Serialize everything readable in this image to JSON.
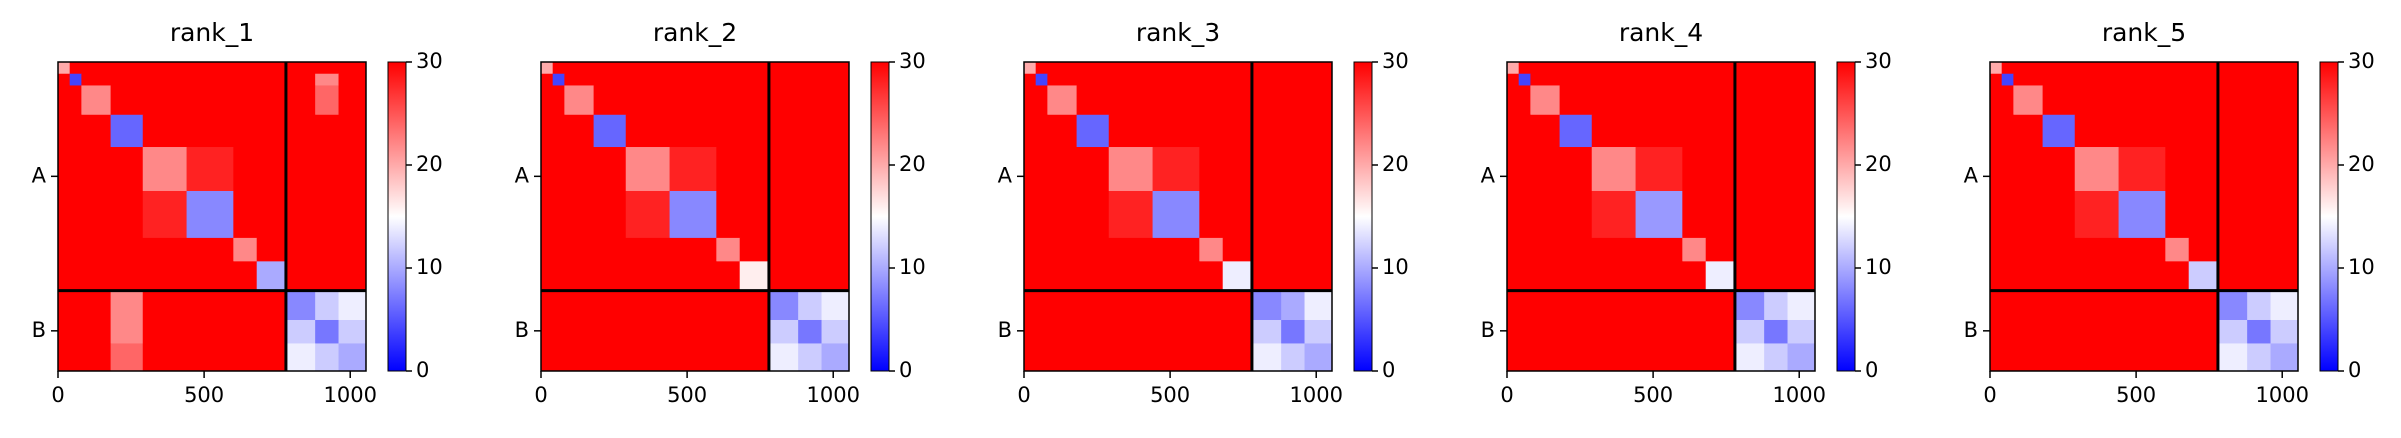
{
  "chart_data": [
    {
      "type": "heatmap",
      "title": "rank_1",
      "bins": [
        0,
        40,
        80,
        180,
        290,
        440,
        600,
        680,
        780,
        880,
        960,
        1054
      ],
      "matrix": [
        [
          20,
          30,
          30,
          30,
          30,
          30,
          30,
          30,
          30,
          30,
          30
        ],
        [
          30,
          4,
          30,
          30,
          30,
          30,
          30,
          30,
          30,
          22,
          30
        ],
        [
          30,
          30,
          22,
          30,
          30,
          30,
          30,
          30,
          30,
          24,
          30
        ],
        [
          30,
          30,
          30,
          6,
          30,
          30,
          30,
          30,
          30,
          30,
          30
        ],
        [
          30,
          30,
          30,
          30,
          22,
          28,
          30,
          30,
          30,
          30,
          30
        ],
        [
          30,
          30,
          30,
          30,
          28,
          8,
          30,
          30,
          30,
          30,
          30
        ],
        [
          30,
          30,
          30,
          30,
          30,
          30,
          22,
          30,
          30,
          30,
          30
        ],
        [
          30,
          30,
          30,
          30,
          30,
          30,
          30,
          10,
          30,
          30,
          30
        ],
        [
          30,
          30,
          30,
          22,
          30,
          30,
          30,
          30,
          8,
          12,
          14
        ],
        [
          30,
          30,
          30,
          22,
          30,
          30,
          30,
          30,
          12,
          7,
          12
        ],
        [
          30,
          30,
          30,
          24,
          30,
          30,
          30,
          30,
          14,
          12,
          10
        ]
      ],
      "xlim": [
        0,
        1054
      ],
      "xticks": [
        0,
        500,
        1000
      ],
      "ylim": [
        1054,
        0
      ],
      "yticks": [
        {
          "value": 390,
          "label": "A"
        },
        {
          "value": 917,
          "label": "B"
        }
      ],
      "chain_boundaries": [
        780
      ],
      "clim": [
        0,
        30
      ],
      "cticks": [
        0,
        10,
        20,
        30
      ],
      "colormap": [
        "#0000ff",
        "#ffffff",
        "#ff0000"
      ]
    },
    {
      "type": "heatmap",
      "title": "rank_2",
      "bins": [
        0,
        40,
        80,
        180,
        290,
        440,
        600,
        680,
        780,
        880,
        960,
        1054
      ],
      "matrix": [
        [
          20,
          30,
          30,
          30,
          30,
          30,
          30,
          30,
          30,
          30,
          30
        ],
        [
          30,
          4,
          30,
          30,
          30,
          30,
          30,
          30,
          30,
          30,
          30
        ],
        [
          30,
          30,
          22,
          30,
          30,
          30,
          30,
          30,
          30,
          30,
          30
        ],
        [
          30,
          30,
          30,
          6,
          30,
          30,
          30,
          30,
          30,
          30,
          30
        ],
        [
          30,
          30,
          30,
          30,
          22,
          28,
          30,
          30,
          30,
          30,
          30
        ],
        [
          30,
          30,
          30,
          30,
          28,
          8,
          30,
          30,
          30,
          30,
          30
        ],
        [
          30,
          30,
          30,
          30,
          30,
          30,
          22,
          30,
          30,
          30,
          30
        ],
        [
          30,
          30,
          30,
          30,
          30,
          30,
          30,
          16,
          30,
          30,
          30
        ],
        [
          30,
          30,
          30,
          30,
          30,
          30,
          30,
          30,
          8,
          12,
          14
        ],
        [
          30,
          30,
          30,
          30,
          30,
          30,
          30,
          30,
          12,
          7,
          12
        ],
        [
          30,
          30,
          30,
          30,
          30,
          30,
          30,
          30,
          14,
          12,
          10
        ]
      ],
      "xlim": [
        0,
        1054
      ],
      "xticks": [
        0,
        500,
        1000
      ],
      "ylim": [
        1054,
        0
      ],
      "yticks": [
        {
          "value": 390,
          "label": "A"
        },
        {
          "value": 917,
          "label": "B"
        }
      ],
      "chain_boundaries": [
        780
      ],
      "clim": [
        0,
        30
      ],
      "cticks": [
        0,
        10,
        20,
        30
      ],
      "colormap": [
        "#0000ff",
        "#ffffff",
        "#ff0000"
      ]
    },
    {
      "type": "heatmap",
      "title": "rank_3",
      "bins": [
        0,
        40,
        80,
        180,
        290,
        440,
        600,
        680,
        780,
        880,
        960,
        1054
      ],
      "matrix": [
        [
          20,
          30,
          30,
          30,
          30,
          30,
          30,
          30,
          30,
          30,
          30
        ],
        [
          30,
          4,
          30,
          30,
          30,
          30,
          30,
          30,
          30,
          30,
          30
        ],
        [
          30,
          30,
          22,
          30,
          30,
          30,
          30,
          30,
          30,
          30,
          30
        ],
        [
          30,
          30,
          30,
          6,
          30,
          30,
          30,
          30,
          30,
          30,
          30
        ],
        [
          30,
          30,
          30,
          30,
          22,
          28,
          30,
          30,
          30,
          30,
          30
        ],
        [
          30,
          30,
          30,
          30,
          28,
          8,
          30,
          30,
          30,
          30,
          30
        ],
        [
          30,
          30,
          30,
          30,
          30,
          30,
          22,
          30,
          30,
          30,
          30
        ],
        [
          30,
          30,
          30,
          30,
          30,
          30,
          30,
          14,
          30,
          30,
          30
        ],
        [
          30,
          30,
          30,
          30,
          30,
          30,
          30,
          30,
          8,
          10,
          14
        ],
        [
          30,
          30,
          30,
          30,
          30,
          30,
          30,
          30,
          12,
          7,
          12
        ],
        [
          30,
          30,
          30,
          30,
          30,
          30,
          30,
          30,
          14,
          12,
          10
        ]
      ],
      "xlim": [
        0,
        1054
      ],
      "xticks": [
        0,
        500,
        1000
      ],
      "ylim": [
        1054,
        0
      ],
      "yticks": [
        {
          "value": 390,
          "label": "A"
        },
        {
          "value": 917,
          "label": "B"
        }
      ],
      "chain_boundaries": [
        780
      ],
      "clim": [
        0,
        30
      ],
      "cticks": [
        0,
        10,
        20,
        30
      ],
      "colormap": [
        "#0000ff",
        "#ffffff",
        "#ff0000"
      ]
    },
    {
      "type": "heatmap",
      "title": "rank_4",
      "bins": [
        0,
        40,
        80,
        180,
        290,
        440,
        600,
        680,
        780,
        880,
        960,
        1054
      ],
      "matrix": [
        [
          20,
          30,
          30,
          30,
          30,
          30,
          30,
          30,
          30,
          30,
          30
        ],
        [
          30,
          4,
          30,
          30,
          30,
          30,
          30,
          30,
          30,
          30,
          30
        ],
        [
          30,
          30,
          22,
          30,
          30,
          30,
          30,
          30,
          30,
          30,
          30
        ],
        [
          30,
          30,
          30,
          6,
          30,
          30,
          30,
          30,
          30,
          30,
          30
        ],
        [
          30,
          30,
          30,
          30,
          22,
          28,
          30,
          30,
          30,
          30,
          30
        ],
        [
          30,
          30,
          30,
          30,
          28,
          9,
          30,
          30,
          30,
          30,
          30
        ],
        [
          30,
          30,
          30,
          30,
          30,
          30,
          22,
          30,
          30,
          30,
          30
        ],
        [
          30,
          30,
          30,
          30,
          30,
          30,
          30,
          14,
          30,
          30,
          30
        ],
        [
          30,
          30,
          30,
          30,
          30,
          30,
          30,
          30,
          8,
          12,
          14
        ],
        [
          30,
          30,
          30,
          30,
          30,
          30,
          30,
          30,
          12,
          7,
          12
        ],
        [
          30,
          30,
          30,
          30,
          30,
          30,
          30,
          30,
          14,
          12,
          10
        ]
      ],
      "xlim": [
        0,
        1054
      ],
      "xticks": [
        0,
        500,
        1000
      ],
      "ylim": [
        1054,
        0
      ],
      "yticks": [
        {
          "value": 390,
          "label": "A"
        },
        {
          "value": 917,
          "label": "B"
        }
      ],
      "chain_boundaries": [
        780
      ],
      "clim": [
        0,
        30
      ],
      "cticks": [
        0,
        10,
        20,
        30
      ],
      "colormap": [
        "#0000ff",
        "#ffffff",
        "#ff0000"
      ]
    },
    {
      "type": "heatmap",
      "title": "rank_5",
      "bins": [
        0,
        40,
        80,
        180,
        290,
        440,
        600,
        680,
        780,
        880,
        960,
        1054
      ],
      "matrix": [
        [
          20,
          30,
          30,
          30,
          30,
          30,
          30,
          30,
          30,
          30,
          30
        ],
        [
          30,
          4,
          30,
          30,
          30,
          30,
          30,
          30,
          30,
          30,
          30
        ],
        [
          30,
          30,
          22,
          30,
          30,
          30,
          30,
          30,
          30,
          30,
          30
        ],
        [
          30,
          30,
          30,
          6,
          30,
          30,
          30,
          30,
          30,
          30,
          30
        ],
        [
          30,
          30,
          30,
          30,
          22,
          28,
          30,
          30,
          30,
          30,
          30
        ],
        [
          30,
          30,
          30,
          30,
          28,
          8,
          30,
          30,
          30,
          30,
          30
        ],
        [
          30,
          30,
          30,
          30,
          30,
          30,
          22,
          30,
          30,
          30,
          30
        ],
        [
          30,
          30,
          30,
          30,
          30,
          30,
          30,
          12,
          30,
          30,
          30
        ],
        [
          30,
          30,
          30,
          30,
          30,
          30,
          30,
          30,
          8,
          12,
          14
        ],
        [
          30,
          30,
          30,
          30,
          30,
          30,
          30,
          30,
          12,
          7,
          12
        ],
        [
          30,
          30,
          30,
          30,
          30,
          30,
          30,
          30,
          14,
          12,
          10
        ]
      ],
      "xlim": [
        0,
        1054
      ],
      "xticks": [
        0,
        500,
        1000
      ],
      "ylim": [
        1054,
        0
      ],
      "yticks": [
        {
          "value": 390,
          "label": "A"
        },
        {
          "value": 917,
          "label": "B"
        }
      ],
      "chain_boundaries": [
        780
      ],
      "clim": [
        0,
        30
      ],
      "cticks": [
        0,
        10,
        20,
        30
      ],
      "colormap": [
        "#0000ff",
        "#ffffff",
        "#ff0000"
      ]
    }
  ]
}
